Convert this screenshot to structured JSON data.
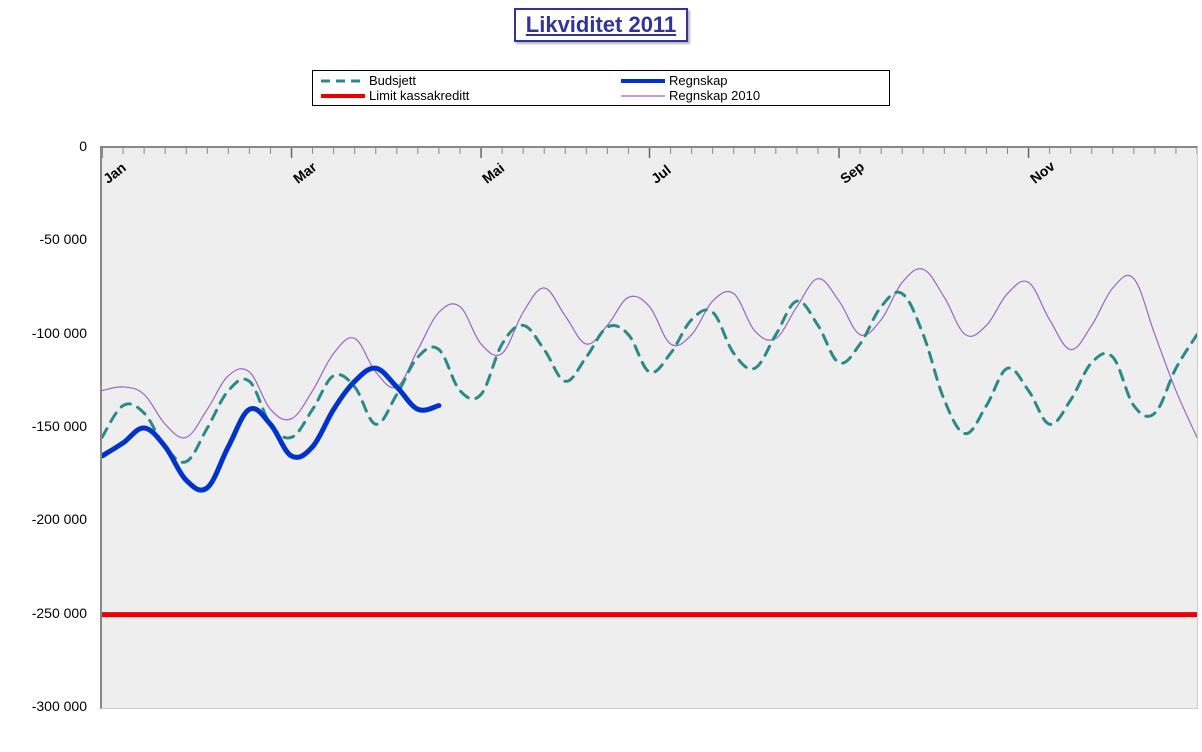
{
  "title": "Likviditet 2011",
  "title_color": "#333399",
  "title_fontsize": 22,
  "legend": {
    "items": [
      {
        "label": "Budsjett",
        "color": "#2a8a8a",
        "style": "dashed",
        "width": 3
      },
      {
        "label": "Regnskap",
        "color": "#0033cc",
        "style": "solid",
        "width": 4
      },
      {
        "label": "Limit kassakreditt",
        "color": "#ee0000",
        "style": "solid",
        "width": 4
      },
      {
        "label": "Regnskap 2010",
        "color": "#9966cc",
        "style": "solid",
        "width": 1
      }
    ]
  },
  "chart": {
    "type": "line",
    "background_color": "#eeeeee",
    "grid_color": "#888888",
    "ylim": [
      -300000,
      0
    ],
    "ytick_step": 50000,
    "yticks": [
      {
        "value": 0,
        "label": "0"
      },
      {
        "value": -50000,
        "label": "-50 000"
      },
      {
        "value": -100000,
        "label": "-100 000"
      },
      {
        "value": -150000,
        "label": "-150 000"
      },
      {
        "value": -200000,
        "label": "-200 000"
      },
      {
        "value": -250000,
        "label": "-250 000"
      },
      {
        "value": -300000,
        "label": "-300 000"
      }
    ],
    "xrange_weeks": 52,
    "xticks_major": [
      {
        "week": 0,
        "label": "Jan"
      },
      {
        "week": 9,
        "label": "Mar"
      },
      {
        "week": 18,
        "label": "Mai"
      },
      {
        "week": 26,
        "label": "Jul"
      },
      {
        "week": 35,
        "label": "Sep"
      },
      {
        "week": 44,
        "label": "Nov"
      }
    ],
    "minor_tick_spacing_weeks": 1,
    "series": {
      "budsjett": {
        "color": "#2a8a8a",
        "width": 3,
        "dash": "10,8",
        "data": [
          [
            0,
            -155000
          ],
          [
            1,
            -138000
          ],
          [
            2,
            -142000
          ],
          [
            3,
            -160000
          ],
          [
            4,
            -168000
          ],
          [
            5,
            -150000
          ],
          [
            6,
            -130000
          ],
          [
            7,
            -125000
          ],
          [
            8,
            -148000
          ],
          [
            9,
            -155000
          ],
          [
            10,
            -140000
          ],
          [
            11,
            -122000
          ],
          [
            12,
            -128000
          ],
          [
            13,
            -148000
          ],
          [
            14,
            -132000
          ],
          [
            15,
            -112000
          ],
          [
            16,
            -108000
          ],
          [
            17,
            -130000
          ],
          [
            18,
            -132000
          ],
          [
            19,
            -105000
          ],
          [
            20,
            -95000
          ],
          [
            21,
            -108000
          ],
          [
            22,
            -125000
          ],
          [
            23,
            -112000
          ],
          [
            24,
            -96000
          ],
          [
            25,
            -100000
          ],
          [
            26,
            -120000
          ],
          [
            27,
            -110000
          ],
          [
            28,
            -92000
          ],
          [
            29,
            -88000
          ],
          [
            30,
            -110000
          ],
          [
            31,
            -118000
          ],
          [
            32,
            -100000
          ],
          [
            33,
            -82000
          ],
          [
            34,
            -95000
          ],
          [
            35,
            -115000
          ],
          [
            36,
            -105000
          ],
          [
            37,
            -85000
          ],
          [
            38,
            -78000
          ],
          [
            39,
            -100000
          ],
          [
            40,
            -135000
          ],
          [
            41,
            -153000
          ],
          [
            42,
            -138000
          ],
          [
            43,
            -118000
          ],
          [
            44,
            -130000
          ],
          [
            45,
            -148000
          ],
          [
            46,
            -135000
          ],
          [
            47,
            -115000
          ],
          [
            48,
            -112000
          ],
          [
            49,
            -138000
          ],
          [
            50,
            -142000
          ],
          [
            51,
            -118000
          ],
          [
            52,
            -100000
          ]
        ]
      },
      "regnskap": {
        "color": "#0033cc",
        "width": 5,
        "dash": null,
        "data": [
          [
            0,
            -165000
          ],
          [
            1,
            -158000
          ],
          [
            2,
            -150000
          ],
          [
            3,
            -160000
          ],
          [
            4,
            -178000
          ],
          [
            5,
            -182000
          ],
          [
            6,
            -160000
          ],
          [
            7,
            -140000
          ],
          [
            8,
            -148000
          ],
          [
            9,
            -165000
          ],
          [
            10,
            -160000
          ],
          [
            11,
            -140000
          ],
          [
            12,
            -125000
          ],
          [
            13,
            -118000
          ],
          [
            14,
            -128000
          ],
          [
            15,
            -140000
          ],
          [
            16,
            -138000
          ]
        ]
      },
      "limit": {
        "color": "#ee0000",
        "width": 5,
        "dash": null,
        "data": [
          [
            0,
            -250000
          ],
          [
            52,
            -250000
          ]
        ]
      },
      "regnskap2010": {
        "color": "#9966cc",
        "width": 1.2,
        "dash": null,
        "data": [
          [
            0,
            -130000
          ],
          [
            1,
            -128000
          ],
          [
            2,
            -132000
          ],
          [
            3,
            -148000
          ],
          [
            4,
            -155000
          ],
          [
            5,
            -140000
          ],
          [
            6,
            -122000
          ],
          [
            7,
            -120000
          ],
          [
            8,
            -140000
          ],
          [
            9,
            -145000
          ],
          [
            10,
            -130000
          ],
          [
            11,
            -110000
          ],
          [
            12,
            -102000
          ],
          [
            13,
            -120000
          ],
          [
            14,
            -128000
          ],
          [
            15,
            -108000
          ],
          [
            16,
            -88000
          ],
          [
            17,
            -85000
          ],
          [
            18,
            -105000
          ],
          [
            19,
            -110000
          ],
          [
            20,
            -88000
          ],
          [
            21,
            -75000
          ],
          [
            22,
            -90000
          ],
          [
            23,
            -105000
          ],
          [
            24,
            -95000
          ],
          [
            25,
            -80000
          ],
          [
            26,
            -85000
          ],
          [
            27,
            -105000
          ],
          [
            28,
            -100000
          ],
          [
            29,
            -82000
          ],
          [
            30,
            -78000
          ],
          [
            31,
            -98000
          ],
          [
            32,
            -102000
          ],
          [
            33,
            -85000
          ],
          [
            34,
            -70000
          ],
          [
            35,
            -82000
          ],
          [
            36,
            -100000
          ],
          [
            37,
            -92000
          ],
          [
            38,
            -72000
          ],
          [
            39,
            -65000
          ],
          [
            40,
            -80000
          ],
          [
            41,
            -100000
          ],
          [
            42,
            -95000
          ],
          [
            43,
            -78000
          ],
          [
            44,
            -72000
          ],
          [
            45,
            -92000
          ],
          [
            46,
            -108000
          ],
          [
            47,
            -95000
          ],
          [
            48,
            -75000
          ],
          [
            49,
            -70000
          ],
          [
            50,
            -100000
          ],
          [
            51,
            -130000
          ],
          [
            52,
            -155000
          ]
        ]
      }
    }
  }
}
